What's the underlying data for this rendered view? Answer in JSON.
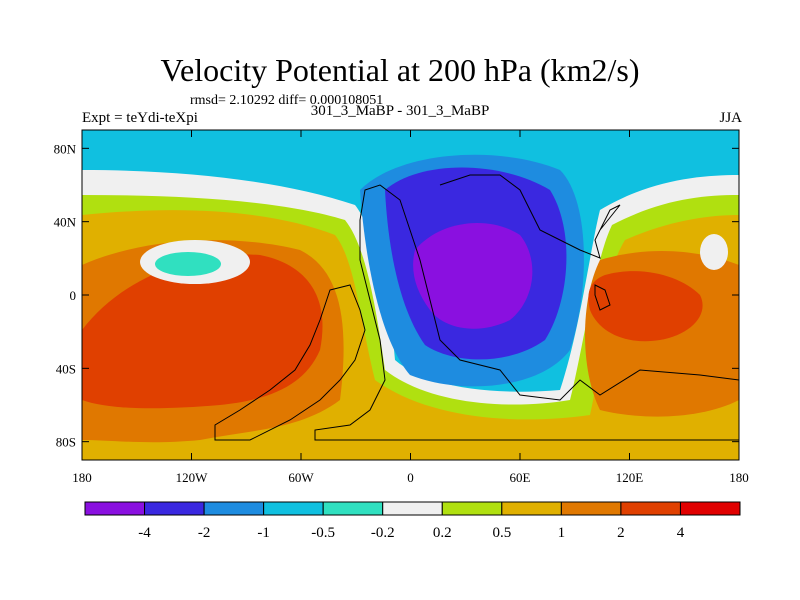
{
  "header": {
    "title": "Velocity Potential at 200 hPa (km2/s)",
    "stats": "rmsd= 2.10292 diff= 0.000108051",
    "experiment": "Expt = teYdi-teXpi",
    "comparison": "301_3_MaBP - 301_3_MaBP",
    "season": "JJA"
  },
  "chart_data": {
    "type": "heatmap",
    "title": "Velocity Potential at 200 hPa (km2/s)",
    "xlabel": "",
    "ylabel": "",
    "x_ticks": [
      "180",
      "120W",
      "60W",
      "0",
      "60E",
      "120E",
      "180"
    ],
    "x_tick_values": [
      -180,
      -120,
      -60,
      0,
      60,
      120,
      180
    ],
    "y_ticks": [
      "80N",
      "40N",
      "0",
      "40S",
      "80S"
    ],
    "y_tick_values": [
      80,
      40,
      0,
      -40,
      -80
    ],
    "xlim": [
      -180,
      180
    ],
    "ylim": [
      -90,
      90
    ],
    "colorbar": {
      "labels": [
        "-4",
        "-2",
        "-1",
        "-0.5",
        "-0.2",
        "0.2",
        "0.5",
        "1",
        "2",
        "4"
      ],
      "colors": [
        "#8a10e0",
        "#3a28e0",
        "#1e8ce0",
        "#10c0e0",
        "#30e0c0",
        "#f0f0f0",
        "#b0e010",
        "#e0b000",
        "#e07800",
        "#e04000",
        "#e00000"
      ]
    },
    "features": [
      {
        "name": "negative center",
        "lon": 30,
        "lat": 15,
        "value_range": "< -4"
      },
      {
        "name": "positive center west",
        "lon": -150,
        "lat": -20,
        "value_range": "2 to 4"
      },
      {
        "name": "positive center east",
        "lon": 125,
        "lat": -5,
        "value_range": "2 to 4"
      },
      {
        "name": "negative pocket",
        "lon": -140,
        "lat": 20,
        "value_range": "-0.5 to -0.2"
      }
    ]
  }
}
